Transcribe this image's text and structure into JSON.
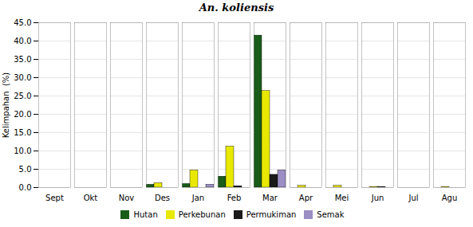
{
  "chart_data": {
    "type": "bar",
    "title": "An. koliensis",
    "ylabel": "Kelimpahan  (%)",
    "categories": [
      "Sept",
      "Okt",
      "Nov",
      "Des",
      "Jan",
      "Feb",
      "Mar",
      "Apr",
      "Mei",
      "Jun",
      "Jul",
      "Agu"
    ],
    "series": [
      {
        "name": "Hutan",
        "color": "#1a5c1a",
        "values": [
          0.0,
          0.0,
          0.0,
          0.8,
          1.0,
          3.0,
          41.5,
          0.0,
          0.0,
          0.0,
          0.0,
          0.0
        ]
      },
      {
        "name": "Perkebunan",
        "color": "#e8e800",
        "values": [
          0.0,
          0.0,
          0.0,
          1.2,
          4.7,
          11.2,
          26.4,
          0.5,
          0.5,
          0.2,
          0.0,
          0.2
        ]
      },
      {
        "name": "Permukiman",
        "color": "#1a1a1a",
        "values": [
          0.0,
          0.0,
          0.0,
          0.0,
          0.0,
          0.4,
          3.5,
          0.0,
          0.0,
          0.2,
          0.0,
          0.0
        ]
      },
      {
        "name": "Semak",
        "color": "#9b8ec4",
        "values": [
          0.0,
          0.0,
          0.0,
          0.0,
          0.8,
          0.0,
          4.7,
          0.0,
          0.0,
          0.0,
          0.0,
          0.0
        ]
      }
    ],
    "ylim": [
      0,
      45
    ],
    "yticks": [
      {
        "value": 0,
        "label": "0.0"
      },
      {
        "value": 5,
        "label": "5.0"
      },
      {
        "value": 10,
        "label": "10.0"
      },
      {
        "value": 15,
        "label": "15.0"
      },
      {
        "value": 20,
        "label": "20.0"
      },
      {
        "value": 25,
        "label": "25.0"
      },
      {
        "value": 30,
        "label": "30.0"
      },
      {
        "value": 35,
        "label": "35.0"
      },
      {
        "value": 40,
        "label": "40.0"
      },
      {
        "value": 45,
        "label": "45.0"
      }
    ],
    "grid": true,
    "legend": "bottom"
  }
}
